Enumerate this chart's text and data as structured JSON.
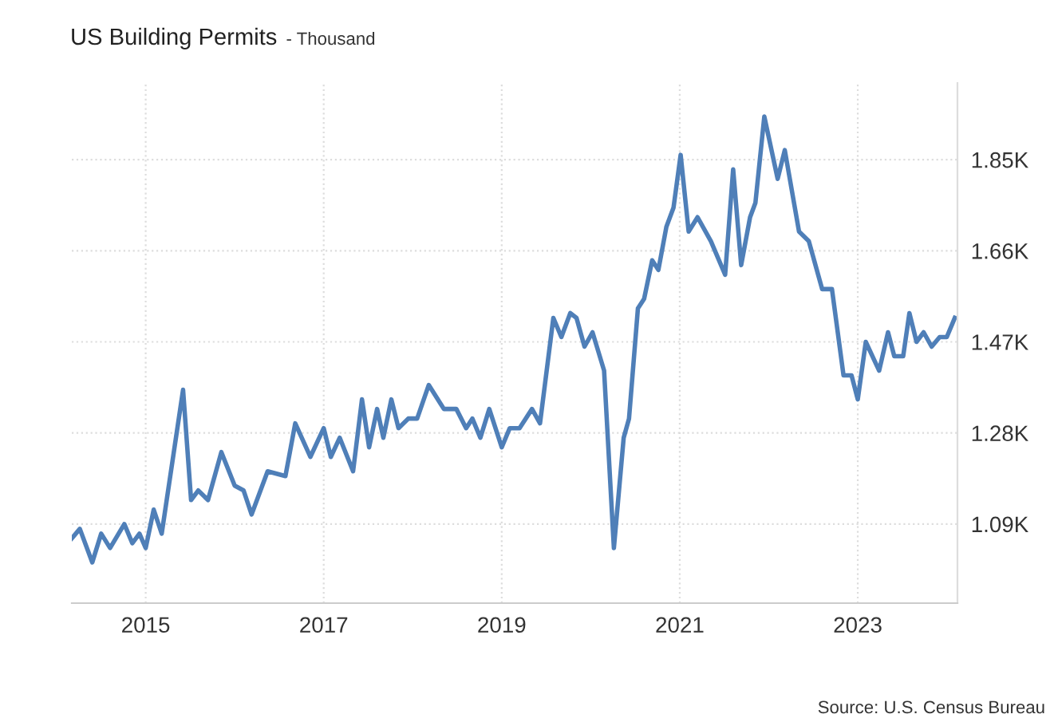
{
  "chart_data": {
    "type": "line",
    "title": "US Building Permits",
    "subtitle": "- Thousand",
    "x": [
      2014.17,
      2014.26,
      2014.4,
      2014.5,
      2014.6,
      2014.76,
      2014.85,
      2014.93,
      2015.0,
      2015.09,
      2015.18,
      2015.42,
      2015.51,
      2015.59,
      2015.7,
      2015.85,
      2016.0,
      2016.1,
      2016.19,
      2016.37,
      2016.57,
      2016.68,
      2016.85,
      2017.0,
      2017.08,
      2017.18,
      2017.33,
      2017.43,
      2017.51,
      2017.6,
      2017.67,
      2017.76,
      2017.84,
      2017.95,
      2018.05,
      2018.18,
      2018.35,
      2018.49,
      2018.6,
      2018.67,
      2018.76,
      2018.86,
      2019.0,
      2019.09,
      2019.2,
      2019.34,
      2019.43,
      2019.58,
      2019.67,
      2019.77,
      2019.84,
      2019.93,
      2020.02,
      2020.15,
      2020.26,
      2020.37,
      2020.43,
      2020.53,
      2020.6,
      2020.69,
      2020.76,
      2020.85,
      2020.93,
      2021.01,
      2021.1,
      2021.2,
      2021.35,
      2021.51,
      2021.6,
      2021.69,
      2021.79,
      2021.85,
      2021.95,
      2022.1,
      2022.18,
      2022.34,
      2022.45,
      2022.6,
      2022.71,
      2022.84,
      2022.93,
      2023.0,
      2023.09,
      2023.24,
      2023.34,
      2023.41,
      2023.51,
      2023.58,
      2023.66,
      2023.74,
      2023.83,
      2023.92,
      2024.0,
      2024.09
    ],
    "series": [
      {
        "color": "#4f7fb8",
        "values": [
          1060,
          1080,
          1010,
          1070,
          1040,
          1090,
          1050,
          1070,
          1040,
          1120,
          1070,
          1370,
          1140,
          1160,
          1140,
          1240,
          1170,
          1160,
          1110,
          1200,
          1190,
          1300,
          1230,
          1290,
          1230,
          1270,
          1200,
          1350,
          1250,
          1330,
          1270,
          1350,
          1290,
          1310,
          1310,
          1380,
          1330,
          1330,
          1290,
          1310,
          1270,
          1330,
          1250,
          1290,
          1290,
          1330,
          1300,
          1520,
          1480,
          1530,
          1520,
          1460,
          1490,
          1410,
          1040,
          1270,
          1310,
          1540,
          1560,
          1640,
          1620,
          1710,
          1750,
          1860,
          1700,
          1730,
          1680,
          1610,
          1830,
          1630,
          1730,
          1760,
          1940,
          1810,
          1870,
          1700,
          1680,
          1580,
          1580,
          1400,
          1400,
          1350,
          1470,
          1410,
          1490,
          1440,
          1440,
          1530,
          1470,
          1490,
          1460,
          1480,
          1480,
          1520
        ]
      }
    ],
    "xlim": [
      2014.17,
      2024.12
    ],
    "ylim": [
      925,
      2010
    ],
    "xticks": [
      2015,
      2017,
      2019,
      2021,
      2023
    ],
    "yticks": [
      {
        "value": 1090,
        "label": "1.09K"
      },
      {
        "value": 1280,
        "label": "1.28K"
      },
      {
        "value": 1470,
        "label": "1.47K"
      },
      {
        "value": 1660,
        "label": "1.66K"
      },
      {
        "value": 1850,
        "label": "1.85K"
      }
    ],
    "grid": true,
    "legend": false,
    "marker": "none",
    "line_style": "solid",
    "annotations": [
      "Source: U.S. Census Bureau"
    ]
  }
}
